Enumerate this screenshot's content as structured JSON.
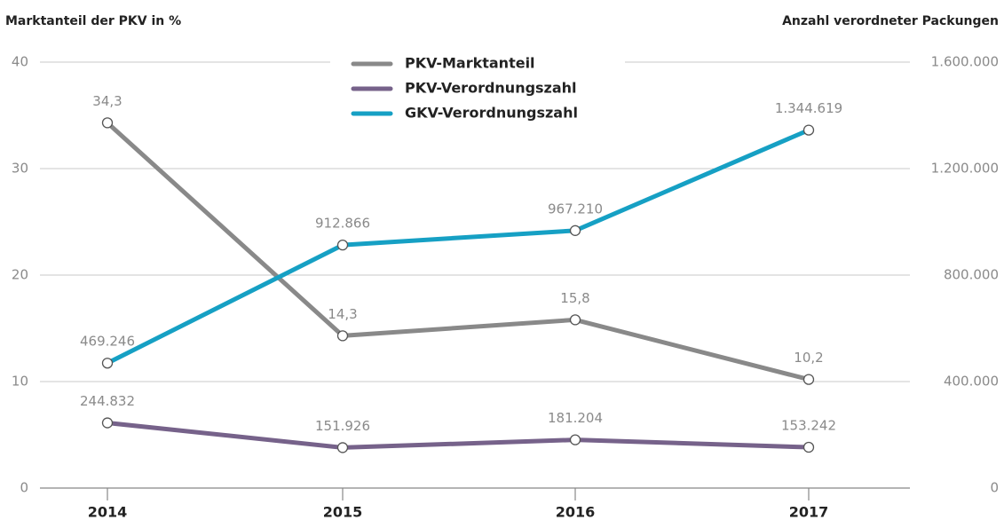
{
  "chart_data": {
    "type": "line",
    "y_label": "Marktanteil der PKV in %",
    "y2_label": "Anzahl verordneter Packungen",
    "categories": [
      "2014",
      "2015",
      "2016",
      "2017"
    ],
    "ylim": [
      0,
      40
    ],
    "yticks": [
      0,
      10,
      20,
      30,
      40
    ],
    "y2lim": [
      0,
      1600000
    ],
    "y2ticks": [
      0,
      {
        "value": 400000,
        "label": "400.000"
      },
      {
        "value": 800000,
        "label": "800.000"
      },
      {
        "value": 1200000,
        "label": "1.200.000"
      },
      {
        "value": 1600000,
        "label": "1.600.000"
      }
    ],
    "grid": true,
    "series": [
      {
        "name": "PKV-Marktanteil",
        "color": "#898989",
        "values": [
          34.3,
          14.3,
          15.8,
          10.2
        ],
        "value_labels": [
          "34,3",
          "14,3",
          "15,8",
          "10,2"
        ]
      },
      {
        "name": "PKV-Verordnungszahl",
        "color": "#76628a",
        "axis": "y2",
        "values": [
          244832,
          151926,
          181204,
          153242
        ],
        "value_labels": [
          "244.832",
          "151.926",
          "181.204",
          "153.242"
        ]
      },
      {
        "name": "GKV-Verordnungszahl",
        "color": "#16a0c4",
        "axis": "y2",
        "values": [
          469246,
          912866,
          967210,
          1344619
        ],
        "value_labels": [
          "469.246",
          "912.866",
          "967.210",
          "1.344.619"
        ]
      }
    ]
  }
}
